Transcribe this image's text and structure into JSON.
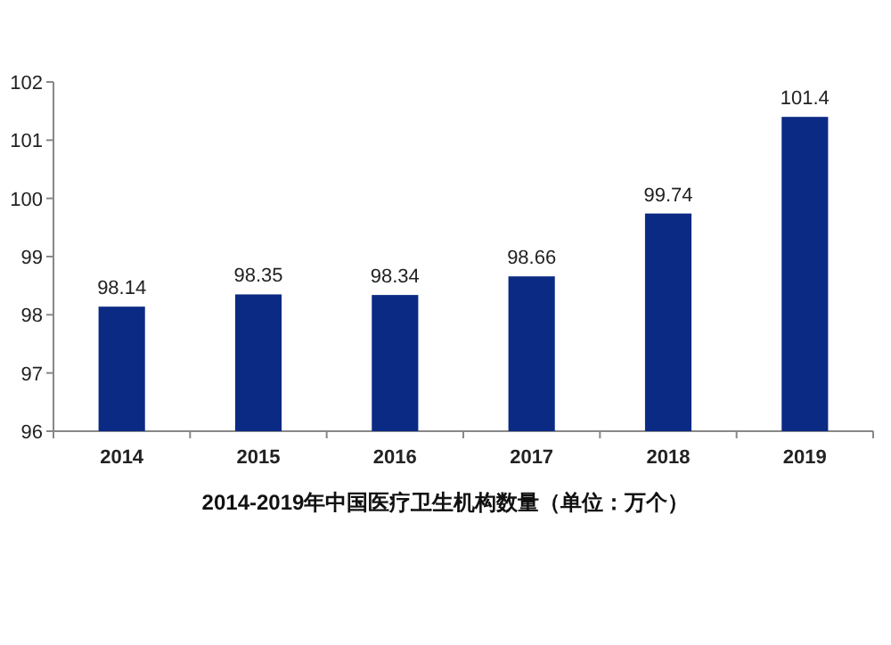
{
  "chart_data": {
    "type": "bar",
    "title": "2014-2019年中国医疗卫生机构数量（单位：万个）",
    "categories": [
      "2014",
      "2015",
      "2016",
      "2017",
      "2018",
      "2019"
    ],
    "values": [
      98.14,
      98.35,
      98.34,
      98.66,
      99.74,
      101.4
    ],
    "value_labels": [
      "98.14",
      "98.35",
      "98.34",
      "98.66",
      "99.74",
      "101.4"
    ],
    "color": "#0b2a84",
    "ylim": [
      96,
      102
    ],
    "yticks": [
      96,
      97,
      98,
      99,
      100,
      101,
      102
    ],
    "grid": false
  }
}
